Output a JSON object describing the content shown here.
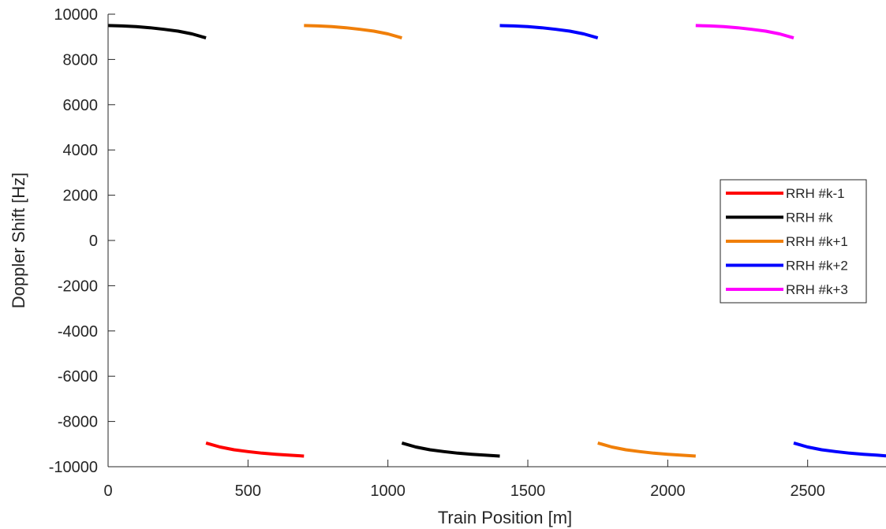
{
  "chart_data": {
    "type": "line",
    "title": "",
    "xlabel": "Train Position [m]",
    "ylabel": "Doppler Shift [Hz]",
    "xlim": [
      0,
      2780
    ],
    "ylim": [
      -10000,
      10000
    ],
    "xticks": [
      0,
      500,
      1000,
      1500,
      2000,
      2500
    ],
    "yticks": [
      -10000,
      -8000,
      -6000,
      -4000,
      -2000,
      0,
      2000,
      4000,
      6000,
      8000,
      10000
    ],
    "grid": false,
    "legend_position": "right",
    "series": [
      {
        "name": "RRH #k-1",
        "color": "#ff0000",
        "segments": [
          [
            [
              350,
              -8950
            ],
            [
              400,
              -9130
            ],
            [
              450,
              -9250
            ],
            [
              500,
              -9330
            ],
            [
              550,
              -9400
            ],
            [
              600,
              -9450
            ],
            [
              650,
              -9490
            ],
            [
              700,
              -9530
            ]
          ]
        ]
      },
      {
        "name": "RRH #k",
        "color": "#000000",
        "segments": [
          [
            [
              0,
              9500
            ],
            [
              50,
              9480
            ],
            [
              100,
              9450
            ],
            [
              150,
              9400
            ],
            [
              200,
              9330
            ],
            [
              250,
              9250
            ],
            [
              300,
              9130
            ],
            [
              350,
              8950
            ]
          ],
          [
            [
              1050,
              -8950
            ],
            [
              1100,
              -9130
            ],
            [
              1150,
              -9250
            ],
            [
              1200,
              -9330
            ],
            [
              1250,
              -9400
            ],
            [
              1300,
              -9450
            ],
            [
              1350,
              -9490
            ],
            [
              1400,
              -9530
            ]
          ]
        ]
      },
      {
        "name": "RRH #k+1",
        "color": "#f07f09",
        "segments": [
          [
            [
              700,
              9500
            ],
            [
              750,
              9480
            ],
            [
              800,
              9450
            ],
            [
              850,
              9400
            ],
            [
              900,
              9330
            ],
            [
              950,
              9250
            ],
            [
              1000,
              9130
            ],
            [
              1050,
              8950
            ]
          ],
          [
            [
              1750,
              -8950
            ],
            [
              1800,
              -9130
            ],
            [
              1850,
              -9250
            ],
            [
              1900,
              -9330
            ],
            [
              1950,
              -9400
            ],
            [
              2000,
              -9450
            ],
            [
              2050,
              -9490
            ],
            [
              2100,
              -9530
            ]
          ]
        ]
      },
      {
        "name": "RRH #k+2",
        "color": "#0000ff",
        "segments": [
          [
            [
              1400,
              9500
            ],
            [
              1450,
              9480
            ],
            [
              1500,
              9450
            ],
            [
              1550,
              9400
            ],
            [
              1600,
              9330
            ],
            [
              1650,
              9250
            ],
            [
              1700,
              9130
            ],
            [
              1750,
              8950
            ]
          ],
          [
            [
              2450,
              -8950
            ],
            [
              2500,
              -9130
            ],
            [
              2550,
              -9250
            ],
            [
              2600,
              -9330
            ],
            [
              2650,
              -9400
            ],
            [
              2700,
              -9450
            ],
            [
              2750,
              -9490
            ],
            [
              2780,
              -9520
            ]
          ]
        ]
      },
      {
        "name": "RRH #k+3",
        "color": "#ff00ff",
        "segments": [
          [
            [
              2100,
              9500
            ],
            [
              2150,
              9480
            ],
            [
              2200,
              9450
            ],
            [
              2250,
              9400
            ],
            [
              2300,
              9330
            ],
            [
              2350,
              9250
            ],
            [
              2400,
              9130
            ],
            [
              2450,
              8950
            ]
          ]
        ]
      }
    ]
  }
}
